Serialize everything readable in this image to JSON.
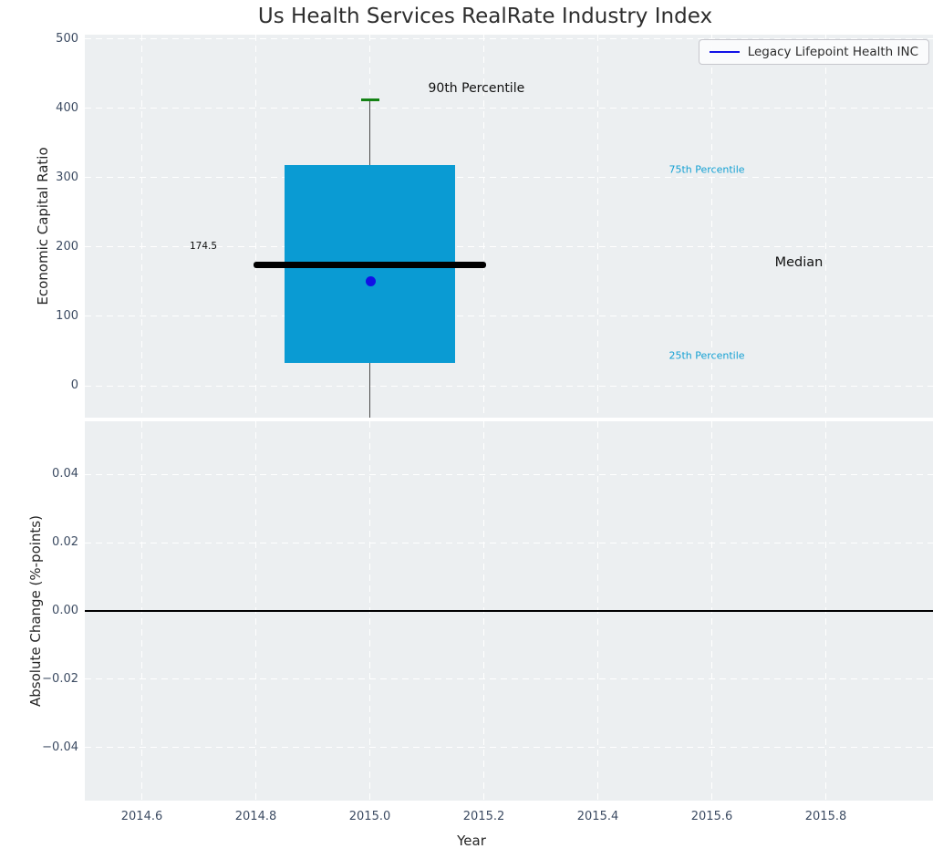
{
  "chart_data": [
    {
      "type": "box",
      "title": "Us Health Services RealRate Industry Index",
      "xlabel": "Year",
      "ylabel": "Economic Capital Ratio",
      "xlim": [
        2014.5,
        2015.988
      ],
      "ylim": [
        -46,
        506
      ],
      "grid": true,
      "legend_position": "upper right",
      "yticks": [
        {
          "label": "0",
          "v": 0
        },
        {
          "label": "100",
          "v": 100
        },
        {
          "label": "200",
          "v": 200
        },
        {
          "label": "300",
          "v": 300
        },
        {
          "label": "400",
          "v": 400
        },
        {
          "label": "500",
          "v": 500
        }
      ],
      "xticks": [
        {
          "label": "2014.6",
          "v": 2014.6
        },
        {
          "label": "2014.8",
          "v": 2014.8
        },
        {
          "label": "2015.0",
          "v": 2015.0
        },
        {
          "label": "2015.2",
          "v": 2015.2
        },
        {
          "label": "2015.4",
          "v": 2015.4
        },
        {
          "label": "2015.6",
          "v": 2015.6
        },
        {
          "label": "2015.8",
          "v": 2015.8
        }
      ],
      "box": {
        "x": 2015.0,
        "p90": 412,
        "p75": 318,
        "median": 174.5,
        "p25": 33,
        "box_halfwidth": 0.15,
        "median_halfwidth": 0.204,
        "cap_halfwidth": 0.016,
        "whisker_to_axis_bottom": true,
        "box_color": "#0a9bd3",
        "cap_color": "#148214",
        "median_color": "#000000"
      },
      "annotations": {
        "p90": "90th Percentile",
        "p75": "75th Percentile",
        "median": "Median",
        "p25": "25th Percentile",
        "median_value": "174.5"
      },
      "series": [
        {
          "name": "Legacy Lifepoint Health INC",
          "x": [
            2015.0
          ],
          "y": [
            150
          ],
          "marker": "circle",
          "color": "#1111e6"
        }
      ]
    },
    {
      "type": "line",
      "xlabel": "Year",
      "ylabel": "Absolute Change (%-points)",
      "xlim": [
        2014.5,
        2015.988
      ],
      "ylim": [
        -0.0555,
        0.0555
      ],
      "grid": true,
      "zero_line_y": 0.0,
      "yticks": [
        {
          "label": "0.04",
          "v": 0.04
        },
        {
          "label": "0.02",
          "v": 0.02
        },
        {
          "label": "0.00",
          "v": 0.0
        },
        {
          "label": "−0.02",
          "v": -0.02
        },
        {
          "label": "−0.04",
          "v": -0.04
        }
      ],
      "xticks": [
        {
          "label": "2014.6",
          "v": 2014.6
        },
        {
          "label": "2014.8",
          "v": 2014.8
        },
        {
          "label": "2015.0",
          "v": 2015.0
        },
        {
          "label": "2015.2",
          "v": 2015.2
        },
        {
          "label": "2015.4",
          "v": 2015.4
        },
        {
          "label": "2015.6",
          "v": 2015.6
        },
        {
          "label": "2015.8",
          "v": 2015.8
        }
      ],
      "series": []
    }
  ]
}
